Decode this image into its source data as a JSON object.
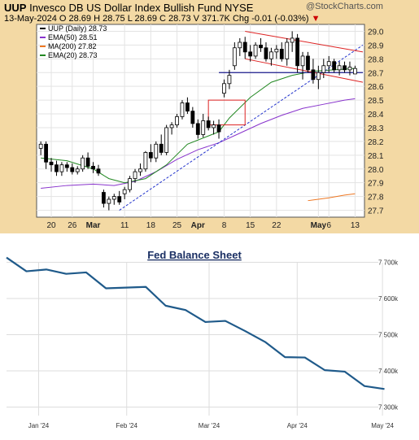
{
  "stock": {
    "ticker": "UUP",
    "name": "Invesco DB US Dollar Index Bullish Fund",
    "exchange": "NYSE",
    "date": "13-May-2024",
    "open_label": "O 28.69",
    "high_label": "H 28.75",
    "low_label": "L 28.69",
    "close_label": "C 28.73",
    "volume_label": "V 371.7K",
    "change_label": "Chg -0.01 (-0.03%)",
    "watermark": "@StockCharts.com",
    "legend": [
      {
        "label": "UUP (Daily) 28.73",
        "color": "#000000"
      },
      {
        "label": "EMA(50) 28.51",
        "color": "#8833cc"
      },
      {
        "label": "MA(200) 27.82",
        "color": "#ee7722"
      },
      {
        "label": "EMA(20) 28.73",
        "color": "#228822"
      }
    ],
    "x_ticks": [
      {
        "label": "20",
        "i": 2,
        "bold": false
      },
      {
        "label": "26",
        "i": 6,
        "bold": false
      },
      {
        "label": "Mar",
        "i": 10,
        "bold": true
      },
      {
        "label": "11",
        "i": 16,
        "bold": false
      },
      {
        "label": "18",
        "i": 21,
        "bold": false
      },
      {
        "label": "25",
        "i": 26,
        "bold": false
      },
      {
        "label": "Apr",
        "i": 30,
        "bold": true
      },
      {
        "label": "8",
        "i": 35,
        "bold": false
      },
      {
        "label": "15",
        "i": 40,
        "bold": false
      },
      {
        "label": "22",
        "i": 45,
        "bold": false
      },
      {
        "label": "May",
        "i": 53,
        "bold": true
      },
      {
        "label": "6",
        "i": 55,
        "bold": false
      },
      {
        "label": "13",
        "i": 60,
        "bold": false
      }
    ],
    "y_ticks": [
      "29.0",
      "28.9",
      "28.8",
      "28.7",
      "28.6",
      "28.5",
      "28.4",
      "28.3",
      "28.2",
      "28.1",
      "28.0",
      "27.9",
      "27.8",
      "27.7"
    ]
  },
  "chart_data": [
    {
      "type": "candlestick",
      "title": "UUP (Daily)",
      "ylim": [
        27.65,
        29.05
      ],
      "x_index_range": [
        -0.8,
        61.8
      ],
      "candles": [
        [
          28.15,
          28.2,
          28.1,
          28.18
        ],
        [
          28.18,
          28.2,
          28.0,
          28.05
        ],
        [
          28.05,
          28.08,
          27.98,
          28.03
        ],
        [
          28.03,
          28.06,
          27.95,
          27.98
        ],
        [
          27.98,
          28.05,
          27.95,
          28.03
        ],
        [
          28.03,
          28.05,
          27.98,
          28.01
        ],
        [
          28.01,
          28.04,
          27.96,
          27.98
        ],
        [
          27.98,
          28.02,
          27.96,
          28.0
        ],
        [
          28.0,
          28.1,
          27.98,
          28.08
        ],
        [
          28.08,
          28.12,
          28.0,
          28.02
        ],
        [
          28.02,
          28.05,
          27.97,
          28.0
        ],
        [
          28.0,
          28.03,
          27.95,
          27.97
        ],
        [
          27.83,
          27.85,
          27.72,
          27.75
        ],
        [
          27.75,
          27.8,
          27.7,
          27.78
        ],
        [
          27.78,
          27.82,
          27.74,
          27.8
        ],
        [
          27.8,
          27.84,
          27.74,
          27.76
        ],
        [
          27.82,
          27.87,
          27.78,
          27.85
        ],
        [
          27.85,
          27.95,
          27.83,
          27.93
        ],
        [
          27.93,
          28.0,
          27.9,
          27.98
        ],
        [
          27.98,
          28.04,
          27.95,
          28.0
        ],
        [
          28.0,
          28.13,
          27.98,
          28.12
        ],
        [
          28.12,
          28.18,
          28.05,
          28.08
        ],
        [
          28.08,
          28.2,
          28.05,
          28.18
        ],
        [
          28.18,
          28.25,
          28.1,
          28.12
        ],
        [
          28.12,
          28.32,
          28.1,
          28.3
        ],
        [
          28.3,
          28.34,
          28.25,
          28.32
        ],
        [
          28.32,
          28.4,
          28.3,
          28.38
        ],
        [
          28.38,
          28.5,
          28.36,
          28.48
        ],
        [
          28.48,
          28.52,
          28.4,
          28.42
        ],
        [
          28.42,
          28.45,
          28.3,
          28.33
        ],
        [
          28.33,
          28.36,
          28.22,
          28.25
        ],
        [
          28.25,
          28.4,
          28.23,
          28.35
        ],
        [
          28.35,
          28.38,
          28.28,
          28.3
        ],
        [
          28.3,
          28.35,
          28.25,
          28.32
        ],
        [
          28.32,
          28.36,
          28.22,
          28.27
        ],
        [
          28.55,
          28.65,
          28.52,
          28.62
        ],
        [
          28.62,
          28.72,
          28.58,
          28.68
        ],
        [
          28.75,
          28.92,
          28.72,
          28.88
        ],
        [
          28.88,
          28.95,
          28.82,
          28.92
        ],
        [
          28.92,
          28.96,
          28.8,
          28.85
        ],
        [
          28.85,
          28.9,
          28.78,
          28.82
        ],
        [
          28.82,
          28.92,
          28.8,
          28.9
        ],
        [
          28.9,
          28.95,
          28.85,
          28.88
        ],
        [
          28.88,
          28.92,
          28.78,
          28.8
        ],
        [
          28.8,
          28.88,
          28.75,
          28.85
        ],
        [
          28.85,
          28.9,
          28.8,
          28.87
        ],
        [
          28.87,
          28.92,
          28.78,
          28.8
        ],
        [
          28.8,
          28.95,
          28.75,
          28.92
        ],
        [
          28.92,
          29.0,
          28.85,
          28.95
        ],
        [
          28.95,
          28.98,
          28.7,
          28.75
        ],
        [
          28.75,
          28.85,
          28.65,
          28.82
        ],
        [
          28.82,
          28.85,
          28.7,
          28.72
        ],
        [
          28.72,
          28.8,
          28.62,
          28.65
        ],
        [
          28.65,
          28.75,
          28.58,
          28.7
        ],
        [
          28.7,
          28.8,
          28.66,
          28.75
        ],
        [
          28.75,
          28.82,
          28.7,
          28.78
        ],
        [
          28.78,
          28.8,
          28.7,
          28.72
        ],
        [
          28.72,
          28.78,
          28.68,
          28.75
        ],
        [
          28.75,
          28.78,
          28.7,
          28.72
        ],
        [
          28.72,
          28.78,
          28.68,
          28.74
        ],
        [
          28.69,
          28.75,
          28.69,
          28.73
        ]
      ],
      "ema20": [
        [
          0,
          28.08
        ],
        [
          5,
          28.06
        ],
        [
          10,
          28.0
        ],
        [
          13,
          27.93
        ],
        [
          16,
          27.9
        ],
        [
          20,
          27.93
        ],
        [
          24,
          28.03
        ],
        [
          28,
          28.18
        ],
        [
          32,
          28.24
        ],
        [
          34,
          28.27
        ],
        [
          36,
          28.37
        ],
        [
          40,
          28.52
        ],
        [
          44,
          28.63
        ],
        [
          48,
          28.68
        ],
        [
          52,
          28.71
        ],
        [
          56,
          28.72
        ],
        [
          60,
          28.73
        ]
      ],
      "ema50": [
        [
          0,
          27.86
        ],
        [
          5,
          27.88
        ],
        [
          10,
          27.89
        ],
        [
          14,
          27.88
        ],
        [
          18,
          27.91
        ],
        [
          22,
          27.98
        ],
        [
          26,
          28.07
        ],
        [
          30,
          28.14
        ],
        [
          34,
          28.19
        ],
        [
          38,
          28.26
        ],
        [
          42,
          28.33
        ],
        [
          46,
          28.39
        ],
        [
          50,
          28.44
        ],
        [
          54,
          28.47
        ],
        [
          58,
          28.5
        ],
        [
          60,
          28.51
        ]
      ],
      "ma200": [
        [
          51,
          27.77
        ],
        [
          55,
          27.79
        ],
        [
          58,
          27.81
        ],
        [
          60,
          27.82
        ]
      ],
      "annotations": {
        "trendline_blue": [
          [
            15,
            27.7
          ],
          [
            61.5,
            28.9
          ]
        ],
        "resistance_level": [
          [
            34,
            28.7
          ],
          [
            61.5,
            28.7
          ]
        ],
        "channel_upper": [
          [
            39,
            29.0
          ],
          [
            61.5,
            28.85
          ]
        ],
        "channel_lower": [
          [
            39,
            28.8
          ],
          [
            61.5,
            28.63
          ]
        ],
        "box": {
          "x": [
            32,
            39
          ],
          "y": [
            28.32,
            28.5
          ]
        }
      }
    },
    {
      "type": "line",
      "title": "Fed Balance Sheet",
      "x_ticks": [
        "Jan '24",
        "Feb '24",
        "Mar '24",
        "Apr '24",
        "May '24"
      ],
      "y_ticks": [
        "7 700k",
        "7 600k",
        "7 500k",
        "7 400k",
        "7 300k"
      ],
      "ylim": [
        7290,
        7710
      ],
      "series": [
        {
          "values": [
            [
              "2023-12-27",
              7713
            ],
            [
              "2024-01-03",
              7675
            ],
            [
              "2024-01-10",
              7680
            ],
            [
              "2024-01-17",
              7668
            ],
            [
              "2024-01-24",
              7672
            ],
            [
              "2024-01-31",
              7628
            ],
            [
              "2024-02-07",
              7630
            ],
            [
              "2024-02-14",
              7632
            ],
            [
              "2024-02-21",
              7580
            ],
            [
              "2024-02-28",
              7568
            ],
            [
              "2024-03-06",
              7535
            ],
            [
              "2024-03-13",
              7538
            ],
            [
              "2024-03-20",
              7510
            ],
            [
              "2024-03-27",
              7480
            ],
            [
              "2024-04-03",
              7438
            ],
            [
              "2024-04-10",
              7437
            ],
            [
              "2024-04-17",
              7402
            ],
            [
              "2024-04-24",
              7398
            ],
            [
              "2024-05-01",
              7358
            ],
            [
              "2024-05-08",
              7350
            ]
          ]
        }
      ]
    }
  ]
}
